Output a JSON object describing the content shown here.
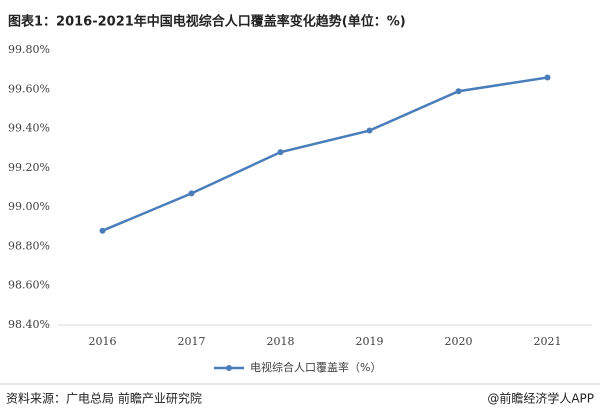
{
  "chart_data": {
    "type": "line",
    "title": "图表1：2016-2021年中国电视综合人口覆盖率变化趋势(单位：%)",
    "categories": [
      "2016",
      "2017",
      "2018",
      "2019",
      "2020",
      "2021"
    ],
    "series": [
      {
        "name": "电视综合人口覆盖率（%）",
        "color": "#4a7ebb",
        "values": [
          98.88,
          99.07,
          99.28,
          99.39,
          99.59,
          99.66
        ]
      }
    ],
    "ylim": [
      98.4,
      99.8
    ],
    "yticks": [
      {
        "value": 98.4,
        "label": "98.40%"
      },
      {
        "value": 98.6,
        "label": "98.60%"
      },
      {
        "value": 98.8,
        "label": "98.80%"
      },
      {
        "value": 99.0,
        "label": "99.00%"
      },
      {
        "value": 99.2,
        "label": "99.20%"
      },
      {
        "value": 99.4,
        "label": "99.40%"
      },
      {
        "value": 99.6,
        "label": "99.60%"
      },
      {
        "value": 99.8,
        "label": "99.80%"
      }
    ],
    "grid": false,
    "legend": "bottom",
    "source": "资料来源：广电总局 前瞻产业研究院",
    "credit": "@前瞻经济学人APP"
  }
}
